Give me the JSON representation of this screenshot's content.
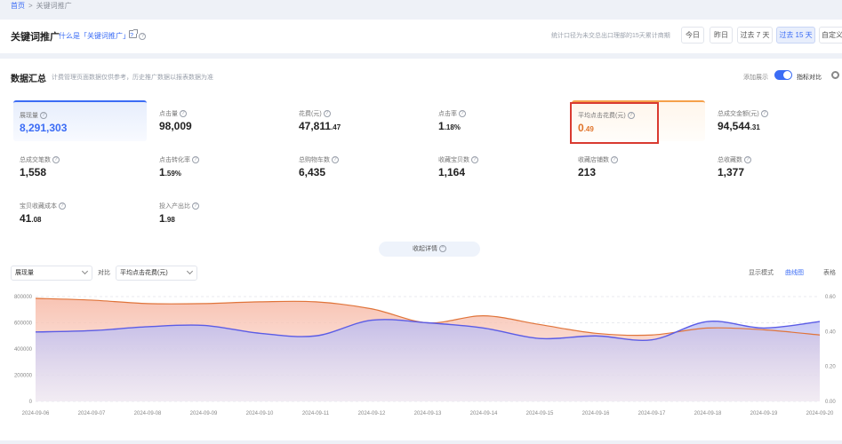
{
  "breadcrumb": {
    "home": "首页",
    "current": "关键词推广"
  },
  "header": {
    "title": "关键词推广",
    "what_link": "什么是「关键词推广」？",
    "stats_note": "统计口径为未交总出口理部的15天累计商期",
    "ranges": [
      "今日",
      "昨日",
      "过去 7 天",
      "过去 15 天",
      "自定义"
    ],
    "active_range": "过去 15 天"
  },
  "summary": {
    "title": "数据汇总",
    "desc": "计费管理页面数据仅供参考，历史推广数据以报表数据为准",
    "toggle_label": "添加展示",
    "toggle_label2": "指标对比"
  },
  "metrics": [
    {
      "label": "展现量",
      "int": "8,291,303",
      "dec": ""
    },
    {
      "label": "点击量",
      "int": "98,009",
      "dec": ""
    },
    {
      "label": "花费(元)",
      "int": "47,811",
      "dec": ".47"
    },
    {
      "label": "点击率",
      "int": "1",
      "dec": ".18%"
    },
    {
      "label": "平均点击花费(元)",
      "int": "0",
      "dec": ".49"
    },
    {
      "label": "总成交金额(元)",
      "int": "94,544",
      "dec": ".31"
    },
    {
      "label": "总成交笔数",
      "int": "1,558",
      "dec": ""
    },
    {
      "label": "点击转化率",
      "int": "1",
      "dec": ".59%"
    },
    {
      "label": "总购物车数",
      "int": "6,435",
      "dec": ""
    },
    {
      "label": "收藏宝贝数",
      "int": "1,164",
      "dec": ""
    },
    {
      "label": "收藏店铺数",
      "int": "213",
      "dec": ""
    },
    {
      "label": "总收藏数",
      "int": "1,377",
      "dec": ""
    },
    {
      "label": "宝贝收藏成本",
      "int": "41",
      "dec": ".08"
    },
    {
      "label": "投入产出比",
      "int": "1",
      "dec": ".98"
    }
  ],
  "controls": {
    "details_btn": "收起详情",
    "primary_select": "展现量",
    "compare_label": "对比",
    "compare_select": "平均点击花费(元)",
    "mode_label": "显示模式",
    "mode_line": "曲线图",
    "mode_table": "表格"
  },
  "colors": {
    "accent": "#3b6cf5",
    "series1": "#5b5ce6",
    "series2": "#e0743a",
    "highlight": "#d93a30"
  },
  "chart_data": {
    "type": "area",
    "x": [
      "2024-09-06",
      "2024-09-07",
      "2024-09-08",
      "2024-09-09",
      "2024-09-10",
      "2024-09-11",
      "2024-09-12",
      "2024-09-13",
      "2024-09-14",
      "2024-09-15",
      "2024-09-16",
      "2024-09-17",
      "2024-09-18",
      "2024-09-19",
      "2024-09-20"
    ],
    "y_left_ticks": [
      "0",
      "200000",
      "400000",
      "600000",
      "800000"
    ],
    "y_left_range": [
      0,
      800000
    ],
    "y_right_ticks": [
      "0.00",
      "0.20",
      "0.40",
      "0.60"
    ],
    "y_right_range": [
      0,
      0.6
    ],
    "series": [
      {
        "values": [
          530000,
          540000,
          570000,
          580000,
          520000,
          500000,
          620000,
          600000,
          560000,
          480000,
          500000,
          470000,
          610000,
          560000,
          610000
        ]
      },
      {
        "values": [
          0.59,
          0.58,
          0.56,
          0.56,
          0.57,
          0.57,
          0.53,
          0.45,
          0.49,
          0.44,
          0.39,
          0.38,
          0.42,
          0.41,
          0.38
        ]
      }
    ]
  }
}
